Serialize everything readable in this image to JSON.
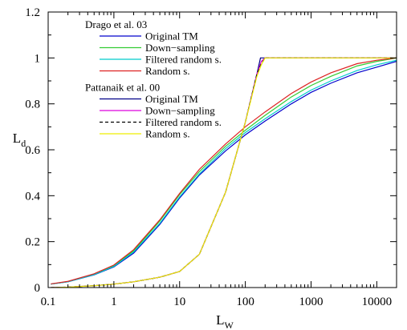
{
  "chart_data": {
    "type": "line",
    "xlabel": "L",
    "xlabel_sub": "W",
    "ylabel": "L",
    "ylabel_sub": "d",
    "xscale": "log",
    "xlim": [
      0.1,
      20000
    ],
    "ylim": [
      0,
      1.2
    ],
    "grid": false,
    "legend_placement": "top-left",
    "x_ticks": [
      {
        "value": 0.1,
        "label": "0.1"
      },
      {
        "value": 1,
        "label": "1"
      },
      {
        "value": 10,
        "label": "10"
      },
      {
        "value": 100,
        "label": "100"
      },
      {
        "value": 1000,
        "label": "1000"
      },
      {
        "value": 10000,
        "label": "10000"
      }
    ],
    "y_ticks": [
      {
        "value": 0,
        "label": "0"
      },
      {
        "value": 0.2,
        "label": "0.2"
      },
      {
        "value": 0.4,
        "label": "0.4"
      },
      {
        "value": 0.6,
        "label": "0.6"
      },
      {
        "value": 0.8,
        "label": "0.8"
      },
      {
        "value": 1,
        "label": "1"
      },
      {
        "value": 1.2,
        "label": "1.2"
      }
    ],
    "legend_groups": [
      {
        "title": "Drago et al. 03",
        "entries": [
          {
            "label": "Original TM",
            "series": 0
          },
          {
            "label": "Down−sampling",
            "series": 1
          },
          {
            "label": "Filtered random s.",
            "series": 2
          },
          {
            "label": "Random s.",
            "series": 3
          }
        ]
      },
      {
        "title": "Pattanaik et al. 00",
        "entries": [
          {
            "label": "Original TM",
            "series": 4
          },
          {
            "label": "Down−sampling",
            "series": 5
          },
          {
            "label": "Filtered random s.",
            "series": 6
          },
          {
            "label": "Random s.",
            "series": 7
          }
        ]
      }
    ],
    "series": [
      {
        "color": "#0000cc",
        "dash": "",
        "x": [
          0.11,
          0.2,
          0.5,
          1,
          2,
          5,
          10,
          20,
          50,
          100,
          200,
          500,
          1000,
          2000,
          5000,
          10000,
          20000
        ],
        "y": [
          0.015,
          0.025,
          0.055,
          0.09,
          0.15,
          0.275,
          0.39,
          0.49,
          0.595,
          0.665,
          0.725,
          0.8,
          0.85,
          0.89,
          0.935,
          0.96,
          0.985
        ]
      },
      {
        "color": "#33cc33",
        "dash": "",
        "x": [
          0.11,
          0.2,
          0.5,
          1,
          2,
          5,
          10,
          20,
          50,
          100,
          200,
          500,
          1000,
          2000,
          5000,
          10000,
          20000
        ],
        "y": [
          0.015,
          0.026,
          0.058,
          0.095,
          0.16,
          0.29,
          0.405,
          0.505,
          0.615,
          0.685,
          0.75,
          0.83,
          0.88,
          0.92,
          0.965,
          0.985,
          1.0
        ]
      },
      {
        "color": "#00cccc",
        "dash": "",
        "x": [
          0.11,
          0.2,
          0.5,
          1,
          2,
          5,
          10,
          20,
          50,
          100,
          200,
          500,
          1000,
          2000,
          5000,
          10000,
          20000
        ],
        "y": [
          0.015,
          0.025,
          0.056,
          0.092,
          0.155,
          0.28,
          0.395,
          0.495,
          0.605,
          0.675,
          0.735,
          0.81,
          0.86,
          0.9,
          0.945,
          0.97,
          0.99
        ]
      },
      {
        "color": "#dd2222",
        "dash": "",
        "x": [
          0.11,
          0.2,
          0.5,
          1,
          2,
          5,
          10,
          20,
          50,
          100,
          200,
          500,
          1000,
          2000,
          5000,
          10000,
          20000
        ],
        "y": [
          0.016,
          0.027,
          0.06,
          0.098,
          0.165,
          0.295,
          0.41,
          0.515,
          0.625,
          0.7,
          0.765,
          0.845,
          0.895,
          0.935,
          0.975,
          0.99,
          1.0
        ]
      },
      {
        "color": "#000088",
        "dash": "",
        "x": [
          0.11,
          0.2,
          0.5,
          1,
          2,
          5,
          10,
          20,
          50,
          100,
          150,
          170,
          200,
          20000
        ],
        "y": [
          0.0,
          0.002,
          0.008,
          0.015,
          0.025,
          0.045,
          0.07,
          0.145,
          0.415,
          0.72,
          0.93,
          1.0,
          1.0,
          1.0
        ]
      },
      {
        "color": "#dd00dd",
        "dash": "",
        "x": [
          0.11,
          0.2,
          0.5,
          1,
          2,
          5,
          10,
          20,
          50,
          100,
          150,
          175,
          200,
          20000
        ],
        "y": [
          0.0,
          0.002,
          0.008,
          0.015,
          0.025,
          0.045,
          0.07,
          0.145,
          0.415,
          0.72,
          0.93,
          0.985,
          1.0,
          1.0
        ]
      },
      {
        "color": "#000000",
        "dash": "4,3",
        "x": [
          0.11,
          0.2,
          0.5,
          1,
          2,
          5,
          10,
          20,
          50,
          100,
          150,
          175,
          200,
          20000
        ],
        "y": [
          0.0,
          0.002,
          0.008,
          0.015,
          0.025,
          0.045,
          0.07,
          0.145,
          0.415,
          0.72,
          0.93,
          0.975,
          1.0,
          1.0
        ]
      },
      {
        "color": "#eeee00",
        "dash": "",
        "x": [
          0.11,
          0.2,
          0.5,
          1,
          2,
          5,
          10,
          20,
          50,
          100,
          150,
          175,
          200,
          20000
        ],
        "y": [
          0.0,
          0.002,
          0.008,
          0.015,
          0.025,
          0.045,
          0.07,
          0.145,
          0.415,
          0.72,
          0.92,
          0.97,
          1.0,
          1.0
        ]
      }
    ]
  }
}
